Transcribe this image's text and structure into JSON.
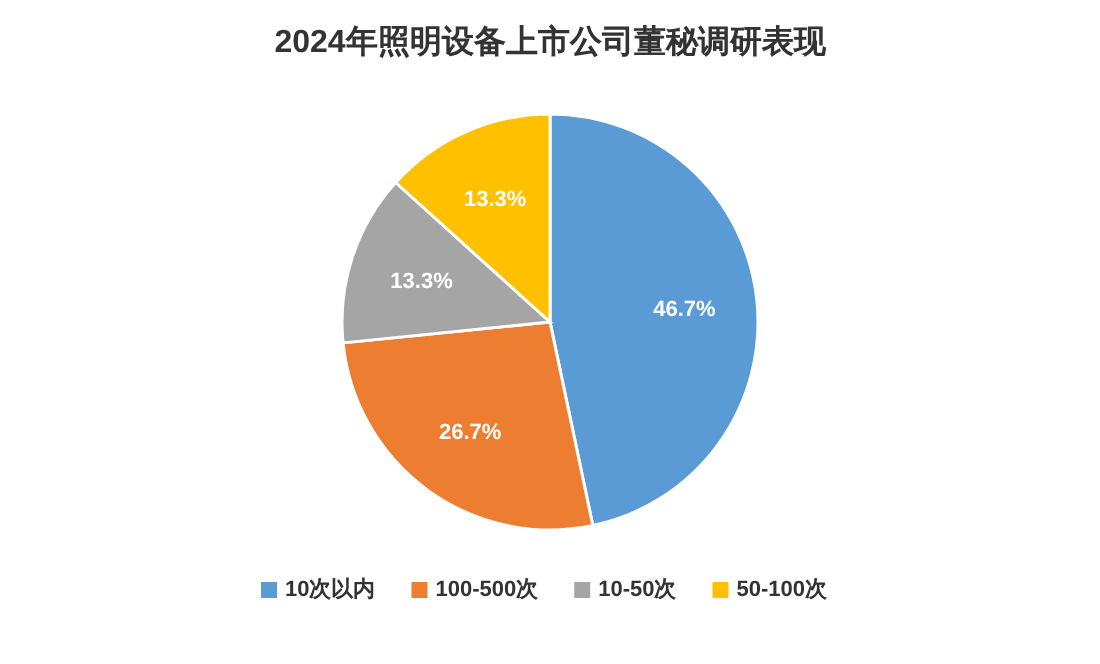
{
  "chart_data": {
    "type": "pie",
    "title": "2024年照明设备上市公司董秘调研表现",
    "categories": [
      "10次以内",
      "100-500次",
      "10-50次",
      "50-100次"
    ],
    "values": [
      46.7,
      26.7,
      13.3,
      13.3
    ],
    "colors": [
      "#5b9bd5",
      "#ed7d31",
      "#a5a5a5",
      "#ffc000"
    ],
    "value_labels": [
      "46.7%",
      "26.7%",
      "13.3%",
      "13.3%"
    ],
    "legend": "bottom"
  }
}
